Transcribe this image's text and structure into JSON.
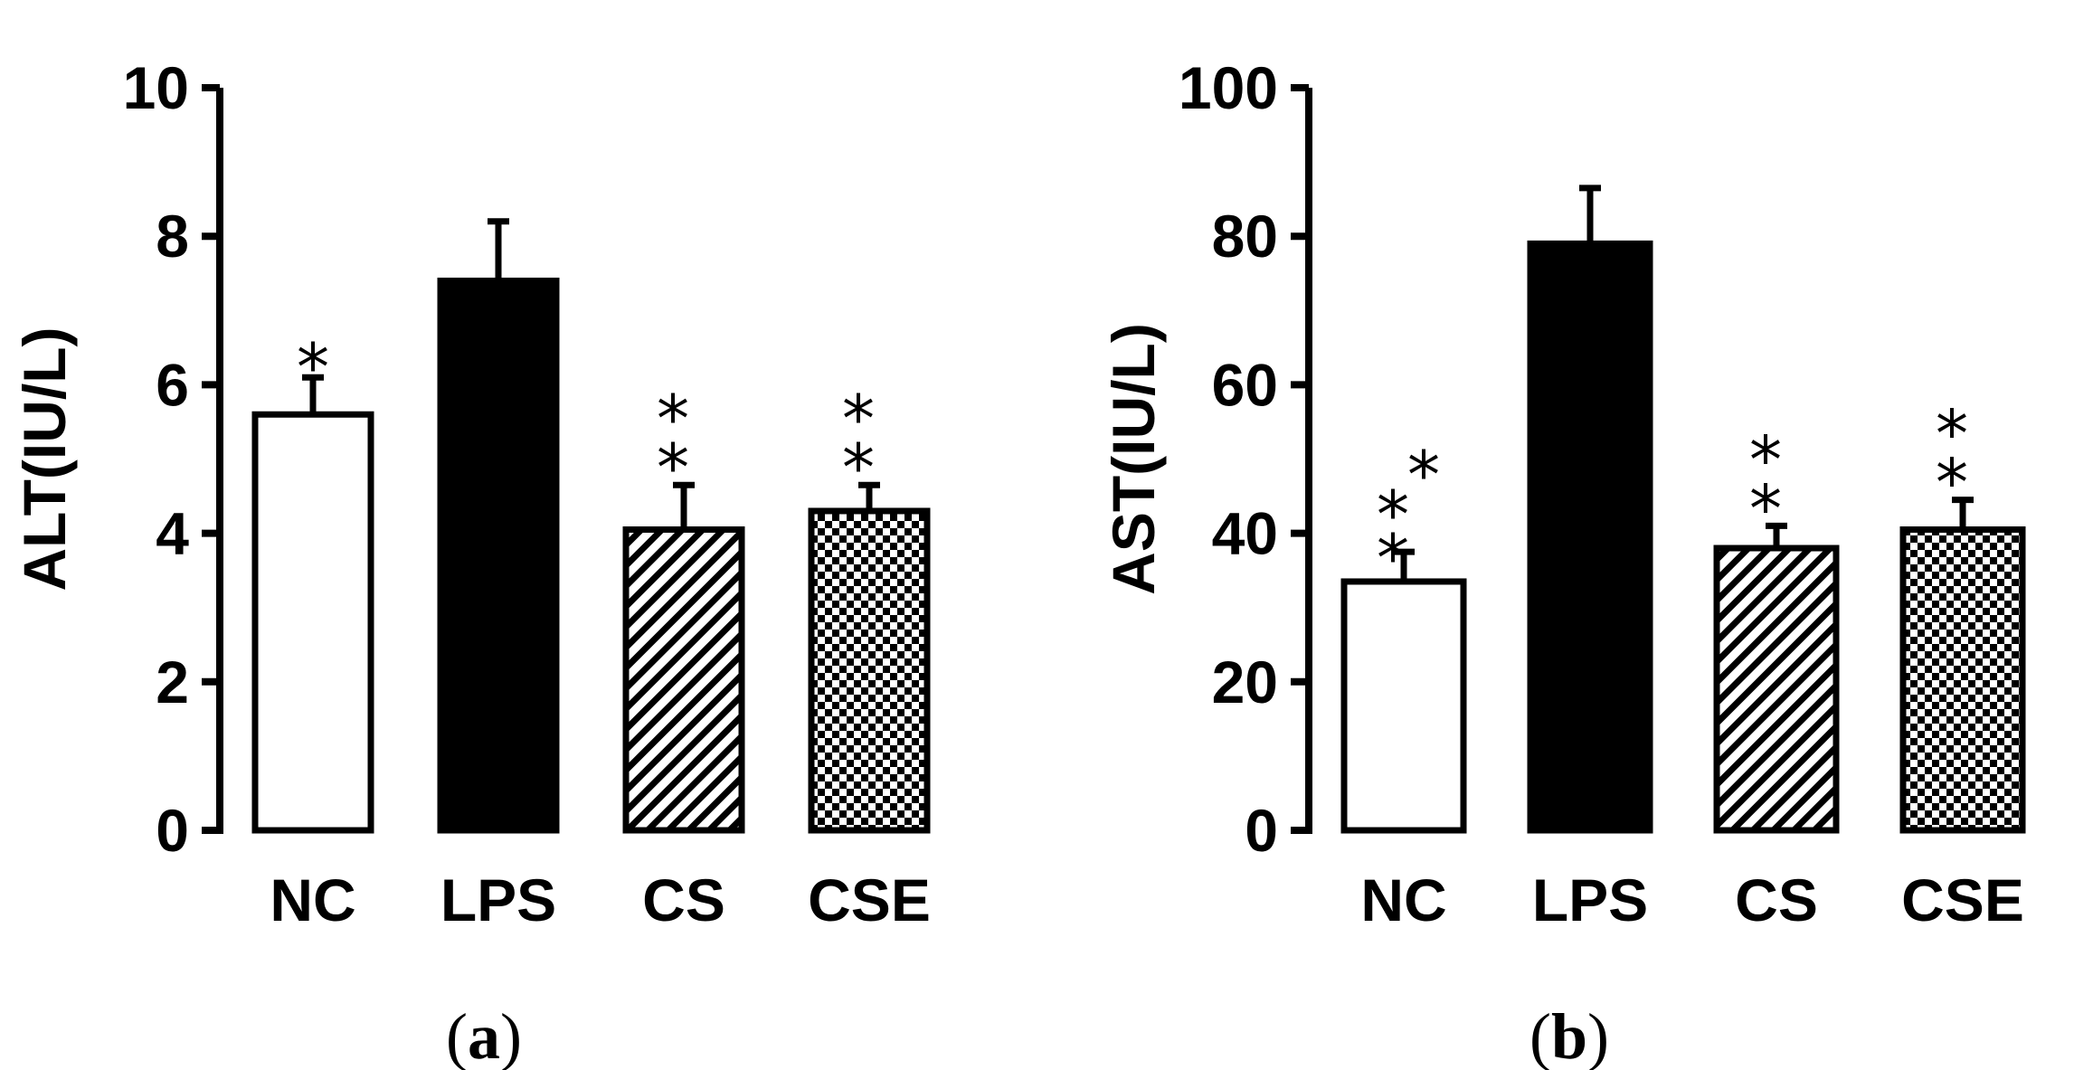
{
  "chart_data": [
    {
      "type": "bar",
      "panel_label": "(a)",
      "ylabel": "ALT(IU/L)",
      "ylim": [
        0,
        10
      ],
      "yticks": [
        0,
        2,
        4,
        6,
        8,
        10
      ],
      "categories": [
        "NC",
        "LPS",
        "CS",
        "CSE"
      ],
      "values": [
        5.6,
        7.4,
        4.05,
        4.3
      ],
      "errors": [
        0.5,
        0.8,
        0.6,
        0.35
      ],
      "fills": [
        "white",
        "black",
        "hatch",
        "checker"
      ],
      "significance": [
        "*",
        "",
        "**",
        "**"
      ]
    },
    {
      "type": "bar",
      "panel_label": "(b)",
      "ylabel": "AST(IU/L)",
      "ylim": [
        0,
        100
      ],
      "yticks": [
        0,
        20,
        40,
        60,
        80,
        100
      ],
      "categories": [
        "NC",
        "LPS",
        "CS",
        "CSE"
      ],
      "values": [
        33.5,
        79,
        38,
        40.5
      ],
      "errors": [
        4,
        7.5,
        3,
        4
      ],
      "fills": [
        "white",
        "black",
        "hatch",
        "checker"
      ],
      "significance": [
        "***",
        "",
        "**",
        "**"
      ]
    }
  ]
}
